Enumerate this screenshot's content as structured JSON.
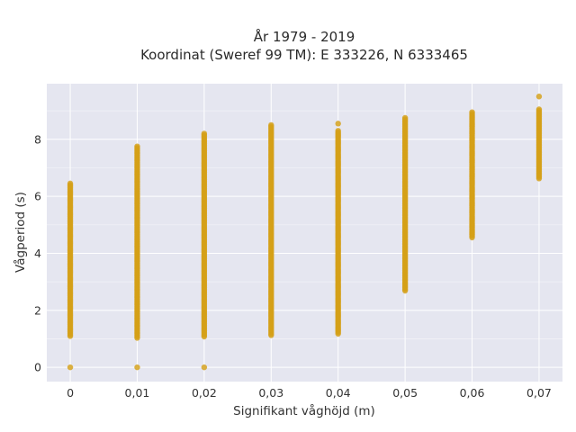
{
  "chart_data": {
    "type": "scatter",
    "title_line1": "År 1979 - 2019",
    "title_line2": "Koordinat (Sweref 99 TM): E 333226, N 6333465",
    "xlabel": "Signifikant våghöjd (m)",
    "ylabel": "Vågperiod (s)",
    "x_tick_values": [
      0,
      0.01,
      0.02,
      0.03,
      0.04,
      0.05,
      0.06,
      0.07
    ],
    "x_tick_labels": [
      "0",
      "0,01",
      "0,02",
      "0,03",
      "0,04",
      "0,05",
      "0,06",
      "0,07"
    ],
    "y_tick_values": [
      0,
      2,
      4,
      6,
      8
    ],
    "y_tick_labels": [
      "0",
      "2",
      "4",
      "6",
      "8"
    ],
    "xlim": [
      -0.0035,
      0.0735
    ],
    "ylim": [
      -0.5,
      9.95
    ],
    "grid": true,
    "series": [
      {
        "color": "#d4a017",
        "columns": [
          {
            "x": 0,
            "y_min": 1.05,
            "y_max": 6.45,
            "extra_y": [
              0.0
            ]
          },
          {
            "x": 0.01,
            "y_min": 1.0,
            "y_max": 7.75,
            "extra_y": [
              0.0
            ]
          },
          {
            "x": 0.02,
            "y_min": 1.05,
            "y_max": 8.2,
            "extra_y": [
              0.0
            ]
          },
          {
            "x": 0.03,
            "y_min": 1.1,
            "y_max": 8.5,
            "extra_y": []
          },
          {
            "x": 0.04,
            "y_min": 1.15,
            "y_max": 8.3,
            "extra_y": [
              8.55
            ]
          },
          {
            "x": 0.05,
            "y_min": 2.65,
            "y_max": 8.75,
            "extra_y": []
          },
          {
            "x": 0.06,
            "y_min": 4.55,
            "y_max": 8.95,
            "extra_y": []
          },
          {
            "x": 0.07,
            "y_min": 6.6,
            "y_max": 9.05,
            "extra_y": [
              9.5
            ]
          }
        ]
      }
    ]
  }
}
